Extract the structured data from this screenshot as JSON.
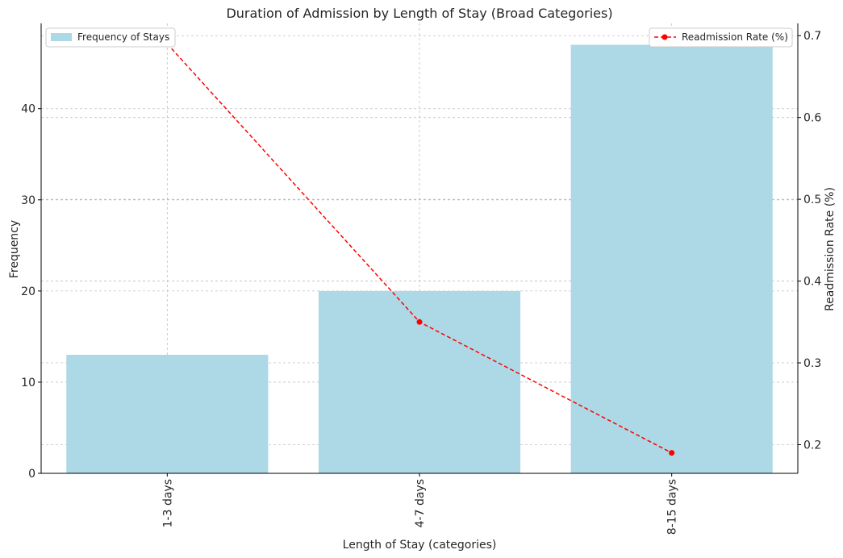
{
  "chart_data": {
    "type": "bar",
    "title": "Duration of Admission by Length of Stay (Broad Categories)",
    "xlabel": "Length of Stay (categories)",
    "categories": [
      "1-3 days",
      "4-7 days",
      "8-15 days"
    ],
    "series": [
      {
        "name": "Frequency of Stays",
        "type": "bar",
        "axis": "left",
        "values": [
          13,
          20,
          47
        ],
        "color": "#add8e6"
      },
      {
        "name": "Readmission Rate (%)",
        "type": "line",
        "axis": "right",
        "values": [
          0.69,
          0.35,
          0.19
        ],
        "color": "#ff0000",
        "line_style": "dashed",
        "marker": "circle"
      }
    ],
    "y_left": {
      "label": "Frequency",
      "ylim": [
        0,
        49.35
      ],
      "ticks": [
        0,
        10,
        20,
        30,
        40
      ]
    },
    "y_right": {
      "label": "Readmission Rate (%)",
      "ylim": [
        0.165,
        0.715
      ],
      "ticks": [
        0.2,
        0.3,
        0.4,
        0.5,
        0.6,
        0.7
      ]
    },
    "grid": true,
    "legend_left_placement": "top-left",
    "legend_right_placement": "top-right"
  }
}
